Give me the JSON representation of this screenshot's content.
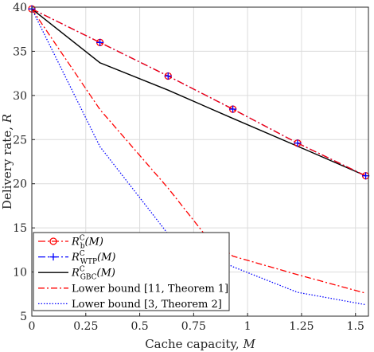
{
  "chart_data": {
    "type": "line",
    "xlabel_text": "Cache capacity, ",
    "xlabel_var": "M",
    "ylabel_text": "Delivery rate, ",
    "ylabel_var": "R",
    "xlim": [
      0,
      1.56
    ],
    "ylim": [
      5,
      40
    ],
    "xticks": [
      0,
      0.25,
      0.5,
      0.75,
      1,
      1.25,
      1.5
    ],
    "xtick_labels": [
      "0",
      "0.25",
      "0.5",
      "0.75",
      "1",
      "1.25",
      "1.5"
    ],
    "yticks": [
      5,
      10,
      15,
      20,
      25,
      30,
      35,
      40
    ],
    "ytick_labels": [
      "5",
      "10",
      "15",
      "20",
      "25",
      "30",
      "35",
      "40"
    ],
    "grid": true,
    "legend_position": "bottom-left",
    "series": [
      {
        "name": "R_b^C(M)",
        "label_main": "R",
        "label_sup": "C",
        "label_sub": "b",
        "label_arg": "(M)",
        "color": "#ff0000",
        "style": "dash-dot",
        "marker": "circle",
        "marker_color": "#ff0000",
        "x": [
          0,
          0.3158,
          0.6316,
          0.9316,
          1.2316,
          1.5474
        ],
        "y": [
          39.8,
          36.0,
          32.2,
          28.45,
          24.6,
          20.9
        ]
      },
      {
        "name": "R_WTP^C(M)",
        "label_main": "R",
        "label_sup": "C",
        "label_sub": "WTP",
        "label_arg": "(M)",
        "color": "#0000ff",
        "style": "dash-dot",
        "marker": "plus",
        "marker_color": "#0000ff",
        "x": [
          0,
          0.3158,
          0.6316,
          0.9316,
          1.2316,
          1.5474
        ],
        "y": [
          39.8,
          36.0,
          32.2,
          28.45,
          24.6,
          20.9
        ]
      },
      {
        "name": "R_GBC^C(M)",
        "label_main": "R",
        "label_sup": "C",
        "label_sub": "GBC",
        "label_arg": "(M)",
        "color": "#000000",
        "style": "solid",
        "marker": "none",
        "x": [
          0,
          0.3158,
          0.6316,
          0.9316,
          1.2316,
          1.5474
        ],
        "y": [
          39.8,
          33.7,
          30.6,
          27.4,
          24.25,
          20.9
        ]
      },
      {
        "name": "Lower bound [11, Theorem 1]",
        "label_text": "Lower bound [11, Theorem 1]",
        "color": "#ff0000",
        "style": "dash-dot-thin",
        "marker": "none",
        "x": [
          0,
          0.3158,
          0.6316,
          0.8,
          0.9316,
          1.2316,
          1.5474
        ],
        "y": [
          39.8,
          28.4,
          19.5,
          14.3,
          11.8,
          9.7,
          7.6
        ]
      },
      {
        "name": "Lower bound [3, Theorem 2]",
        "label_text": "Lower bound [3, Theorem 2]",
        "color": "#0000ff",
        "style": "dotted",
        "marker": "none",
        "x": [
          0,
          0.3158,
          0.6316,
          0.9316,
          1.2316,
          1.5474
        ],
        "y": [
          39.8,
          24.2,
          14.3,
          10.6,
          7.7,
          6.3
        ]
      }
    ]
  }
}
